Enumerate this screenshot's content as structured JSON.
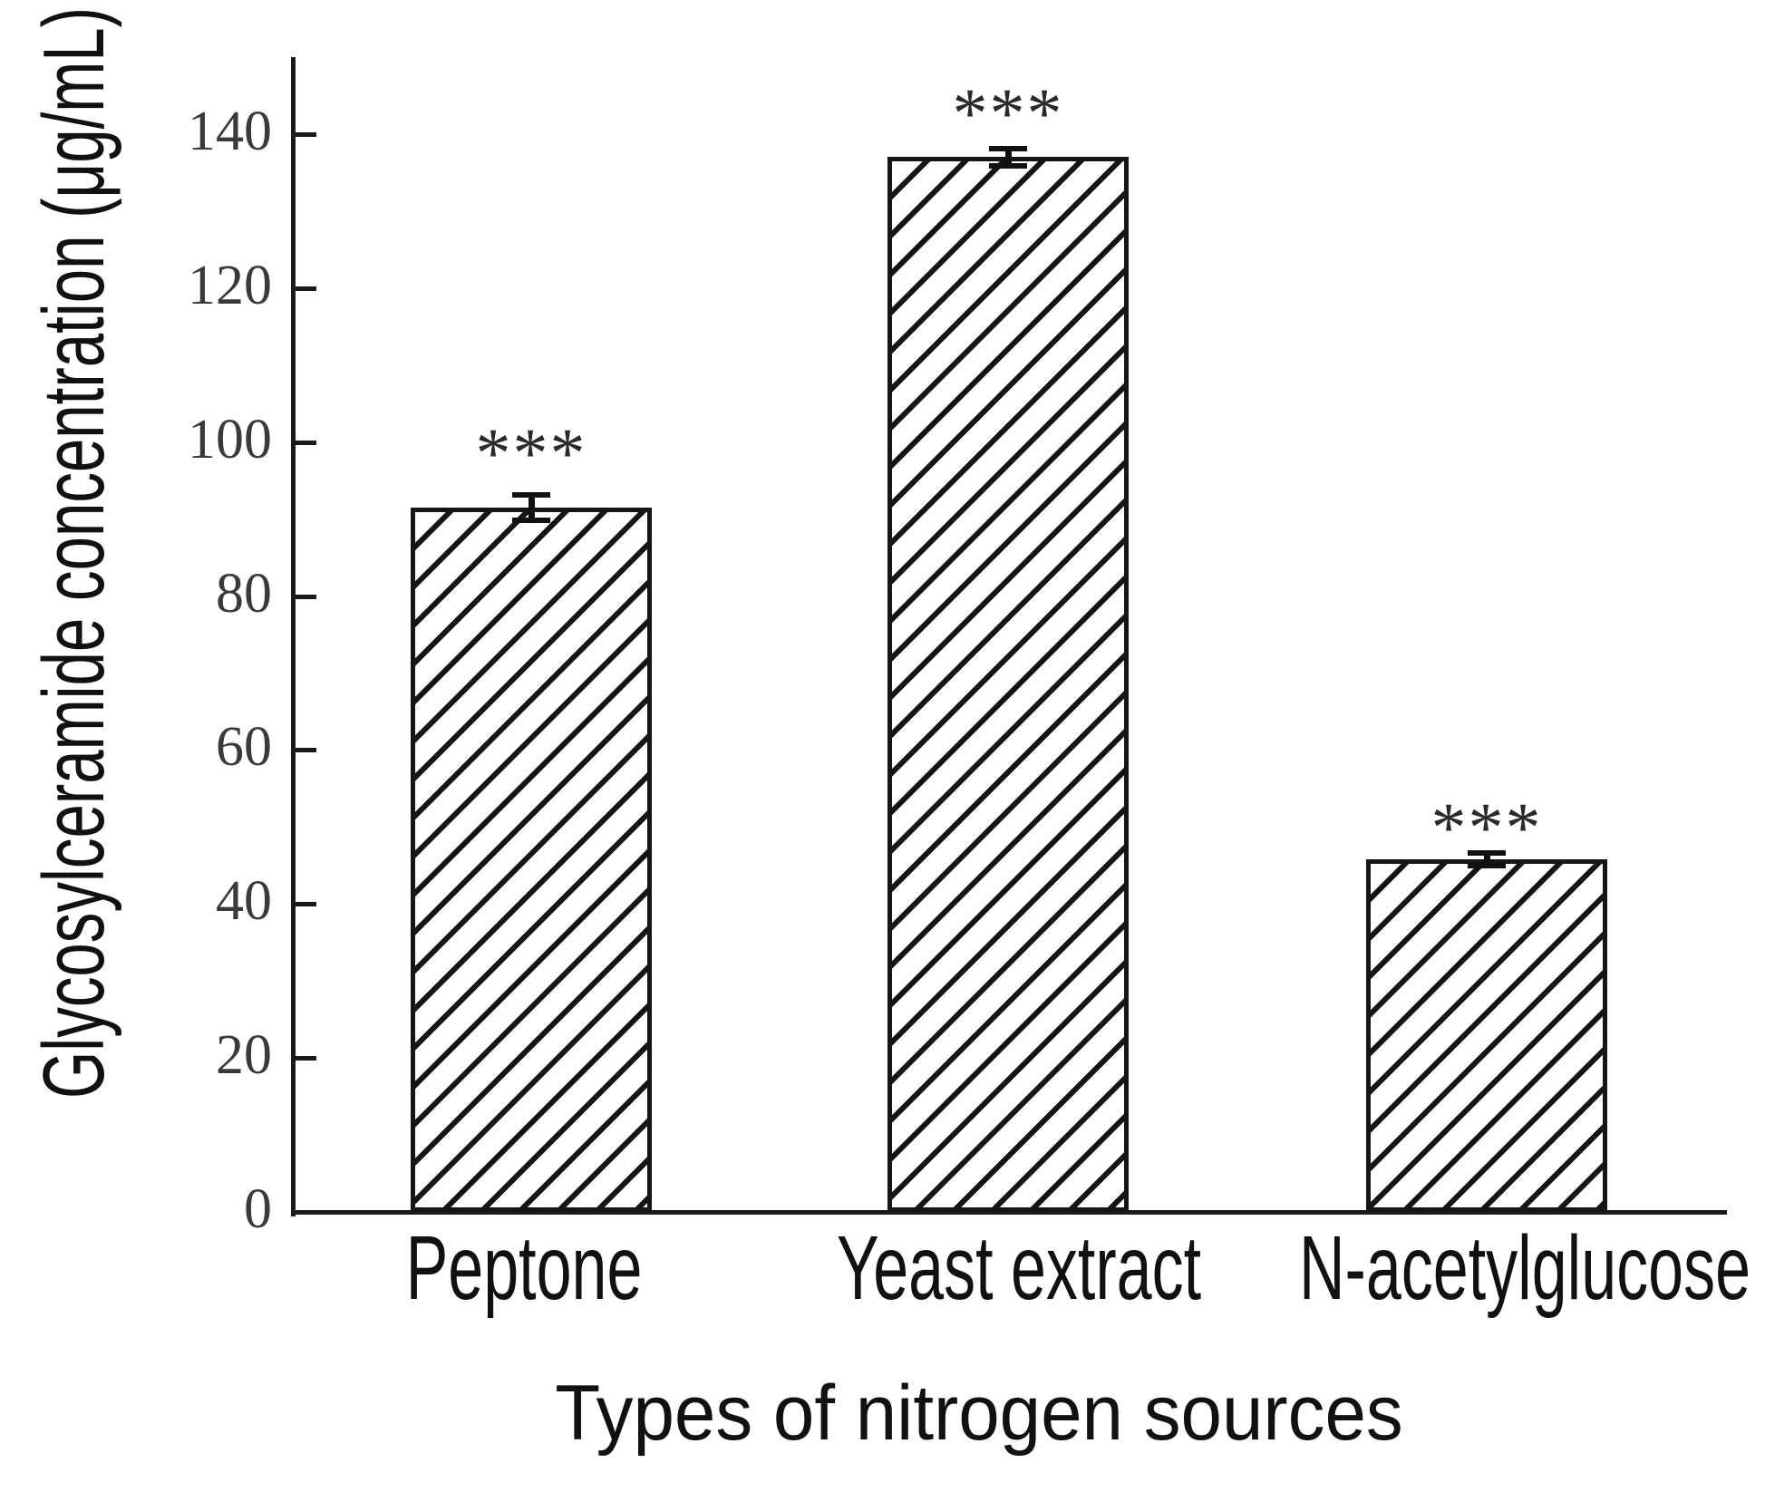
{
  "chart_data": {
    "type": "bar",
    "title": "",
    "xlabel": "Types of nitrogen sources",
    "ylabel": "Glycosylceramide concentration (μg/mL)",
    "categories": [
      "Peptone",
      "Yeast extract",
      "N-acetylglucose"
    ],
    "values": [
      91.5,
      137,
      45.8
    ],
    "error_bars": [
      1.4,
      0.9,
      0.6
    ],
    "significance_labels": [
      "***",
      "***",
      "***"
    ],
    "ylim": [
      0,
      150
    ],
    "yticks": [
      0,
      20,
      40,
      60,
      80,
      100,
      120,
      140
    ],
    "grid": false,
    "legend_position": "none",
    "bar_fill": "diagonal-hatch",
    "colors": {
      "axis": "#1a1a1a",
      "hatch": "#151515",
      "label_text": "#111111",
      "tick_text": "#3a3a3a"
    }
  }
}
